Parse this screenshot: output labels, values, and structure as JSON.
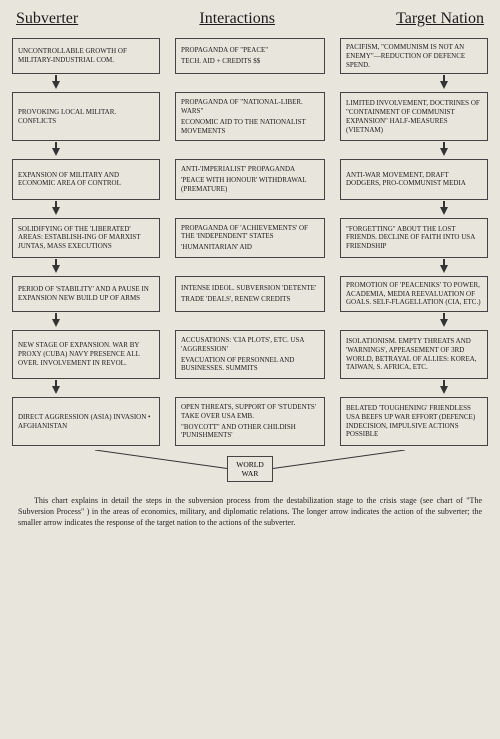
{
  "headers": {
    "left": "Subverter",
    "mid": "Interactions",
    "right": "Target Nation"
  },
  "rows": [
    {
      "left": "UNCONTROLLABLE GROWTH OF MILITARY-INDUSTRIAL COM.",
      "mid1": "PROPAGANDA OF \"PEACE\"",
      "mid2": "TECH. AID + CREDITS $$",
      "right": "PACIFISM, \"COMMUNISM IS NOT AN ENEMY\"—REDUCTION OF DEFENCE SPEND."
    },
    {
      "left": "PROVOKING LOCAL MILITAR. CONFLICTS",
      "mid1": "PROPAGANDA OF \"NATIONAL-LIBER. WARS\"",
      "mid2": "ECONOMIC AID TO THE NATIONALIST MOVEMENTS",
      "right": "LIMITED INVOLVEMENT, DOCTRINES OF \"CONTAINMENT OF COMMUNIST EXPANSION\" HALF-MEASURES (VIETNAM)"
    },
    {
      "left": "EXPANSION OF MILITARY AND ECONOMIC AREA OF CONTROL",
      "mid1": "ANTI-'IMPERIALIST' PROPAGANDA",
      "mid2": "'PEACE WITH HONOUR' WITHDRAWAL (PREMATURE)",
      "right": "ANTI-WAR MOVEMENT, DRAFT DODGERS, PRO-COMMUNIST MEDIA"
    },
    {
      "left": "SOLIDIFYING OF THE 'LIBERATED' AREAS: ESTABLISH-ING OF MARXIST JUNTAS, MASS EXECUTIONS",
      "mid1": "PROPAGANDA OF 'ACHIEVEMENTS' OF THE 'INDEPENDENT' STATES",
      "mid2": "'HUMANITARIAN' AID",
      "right": "\"FORGETTING\" ABOUT THE LOST FRIENDS. DECLINE OF FAITH INTO USA FRIENDSHIP"
    },
    {
      "left": "PERIOD OF 'STABILITY' AND A PAUSE IN EXPANSION NEW BUILD UP OF ARMS",
      "mid1": "INTENSE IDEOL. SUBVERSION 'DETENTE'",
      "mid2": "TRADE 'DEALS', RENEW CREDITS",
      "right": "PROMOTION OF 'PEACENIKS' TO POWER, ACADEMIA, MEDIA REEVALUATION OF GOALS. SELF-FLAGELLATION (CIA, ETC.)"
    },
    {
      "left": "NEW STAGE OF EXPANSION. WAR BY PROXY (CUBA) NAVY PRESENCE ALL OVER. INVOLVEMENT IN REVOL.",
      "mid1": "ACCUSATIONS: 'CIA PLOTS', ETC. USA 'AGGRESSION'",
      "mid2": "EVACUATION OF PERSONNEL AND BUSINESSES. SUMMITS",
      "right": "ISOLATIONISM. EMPTY THREATS AND 'WARNINGS', APPEASEMENT OF 3RD WORLD, BETRAYAL OF ALLIES: KOREA, TAIWAN, S. AFRICA, ETC."
    },
    {
      "left": "DIRECT AGGRESSION (ASIA) INVASION • AFGHANISTAN",
      "mid1": "OPEN THREATS, SUPPORT OF 'STUDENTS' TAKE OVER USA EMB.",
      "mid2": "\"BOYCOTT\" AND OTHER CHILDISH 'PUNISHMENTS'",
      "right": "BELATED 'TOUGHENING' FRIENDLESS USA BEEFS UP WAR EFFORT (DEFENCE) INDECISION, IMPULSIVE ACTIONS POSSIBLE"
    }
  ],
  "final": {
    "line1": "WORLD",
    "line2": "WAR"
  },
  "caption": "This chart explains in detail the steps in the subversion process from the destabilization stage to the crisis stage (see chart of \"The Subversion Process\"             ) in the areas of economics, military, and diplomatic relations. The longer arrow indicates the action of the subverter; the smaller arrow indicates the response of the target nation to the actions of the subverter.",
  "colors": {
    "background": "#e8e5dc",
    "border": "#444444",
    "text": "#1a1a1a",
    "arrow": "#333333"
  },
  "layout": {
    "box_left_width": 148,
    "box_mid_width": 150,
    "box_right_width": 148,
    "row_count": 7
  }
}
